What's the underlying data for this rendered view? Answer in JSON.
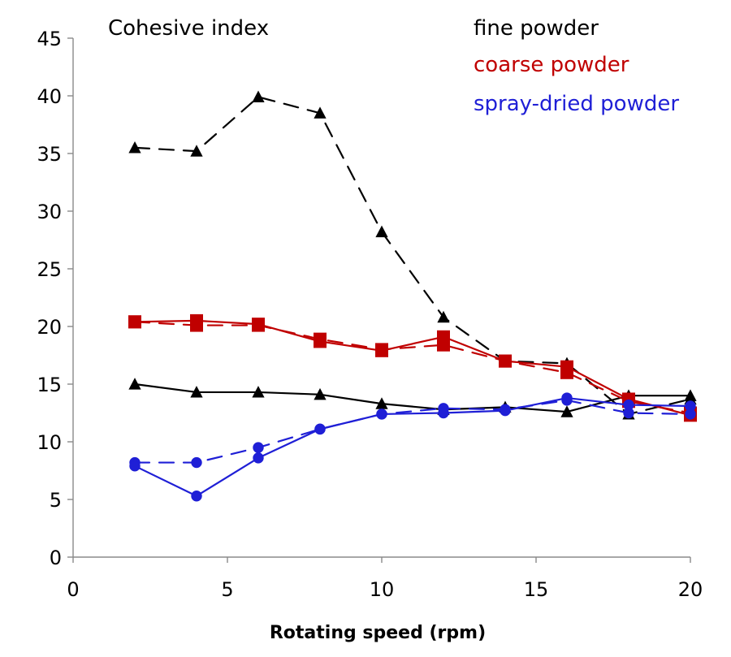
{
  "chart_data": {
    "type": "line",
    "title": "Cohesive index",
    "xlabel": "Rotating speed (rpm)",
    "ylabel": "",
    "xlim": [
      0,
      20
    ],
    "ylim": [
      0,
      45
    ],
    "x_ticks": [
      0,
      5,
      10,
      15,
      20
    ],
    "y_ticks": [
      0,
      5,
      10,
      15,
      20,
      25,
      30,
      35,
      40,
      45
    ],
    "grid": false,
    "legend_position": "top-right",
    "legend": [
      {
        "label": "fine powder",
        "color": "#000000"
      },
      {
        "label": "coarse powder",
        "color": "#c00000"
      },
      {
        "label": "spray-dried powder",
        "color": "#1f1fd6"
      }
    ],
    "series": [
      {
        "group": "fine powder",
        "color": "#000000",
        "line_style": "dashed",
        "marker": "triangle",
        "x": [
          2,
          4,
          6,
          8,
          10,
          12,
          14,
          16,
          18,
          20
        ],
        "y": [
          35.5,
          35.2,
          39.9,
          38.5,
          28.2,
          20.8,
          17.0,
          16.8,
          12.4,
          13.7
        ]
      },
      {
        "group": "fine powder",
        "color": "#000000",
        "line_style": "solid",
        "marker": "triangle",
        "x": [
          2,
          4,
          6,
          8,
          10,
          12,
          14,
          16,
          18,
          20
        ],
        "y": [
          15.0,
          14.3,
          14.3,
          14.1,
          13.3,
          12.8,
          13.0,
          12.6,
          14.0,
          14.0
        ]
      },
      {
        "group": "coarse powder",
        "color": "#c00000",
        "line_style": "dashed",
        "marker": "square",
        "x": [
          2,
          4,
          6,
          8,
          10,
          12,
          14,
          16,
          18,
          20
        ],
        "y": [
          20.4,
          20.1,
          20.1,
          18.9,
          18.0,
          18.4,
          17.0,
          16.0,
          13.5,
          12.5
        ]
      },
      {
        "group": "coarse powder",
        "color": "#c00000",
        "line_style": "solid",
        "marker": "square",
        "x": [
          2,
          4,
          6,
          8,
          10,
          12,
          14,
          16,
          18,
          20
        ],
        "y": [
          20.4,
          20.5,
          20.2,
          18.7,
          17.9,
          19.1,
          17.0,
          16.5,
          13.7,
          12.3
        ]
      },
      {
        "group": "spray-dried powder",
        "color": "#1f1fd6",
        "line_style": "dashed",
        "marker": "circle",
        "x": [
          2,
          4,
          6,
          8,
          10,
          12,
          14,
          16,
          18,
          20
        ],
        "y": [
          8.2,
          8.2,
          9.5,
          11.1,
          12.4,
          12.9,
          12.8,
          13.6,
          12.5,
          12.4
        ]
      },
      {
        "group": "spray-dried powder",
        "color": "#1f1fd6",
        "line_style": "solid",
        "marker": "circle",
        "x": [
          2,
          4,
          6,
          8,
          10,
          12,
          14,
          16,
          18,
          20
        ],
        "y": [
          7.9,
          5.3,
          8.6,
          11.1,
          12.4,
          12.5,
          12.7,
          13.8,
          13.2,
          13.1
        ]
      }
    ]
  }
}
